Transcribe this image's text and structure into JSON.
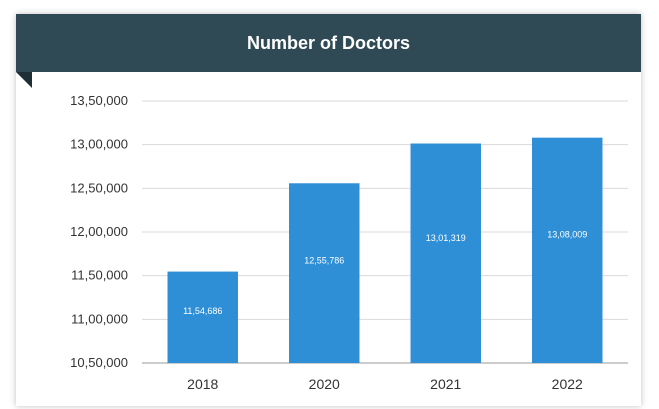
{
  "chart_data": {
    "type": "bar",
    "title": "Number of Doctors",
    "categories": [
      "2018",
      "2020",
      "2021",
      "2022"
    ],
    "values": [
      1154686,
      1255786,
      1301319,
      1308009
    ],
    "data_labels": [
      "11,54,686",
      "12,55,786",
      "13,01,319",
      "13,08,009"
    ],
    "ylim": [
      1050000,
      1350000
    ],
    "yticks": [
      1050000,
      1100000,
      1150000,
      1200000,
      1250000,
      1300000,
      1350000
    ],
    "ytick_labels": [
      "10,50,000",
      "11,00,000",
      "11,50,000",
      "12,00,000",
      "12,50,000",
      "13,00,000",
      "13,50,000"
    ],
    "grid": true,
    "legend": "none",
    "colors": {
      "bar": "#2e8fd6",
      "header": "#2f4a55",
      "header_fold": "#1e2f36",
      "gridline": "#d9d9d9"
    }
  }
}
